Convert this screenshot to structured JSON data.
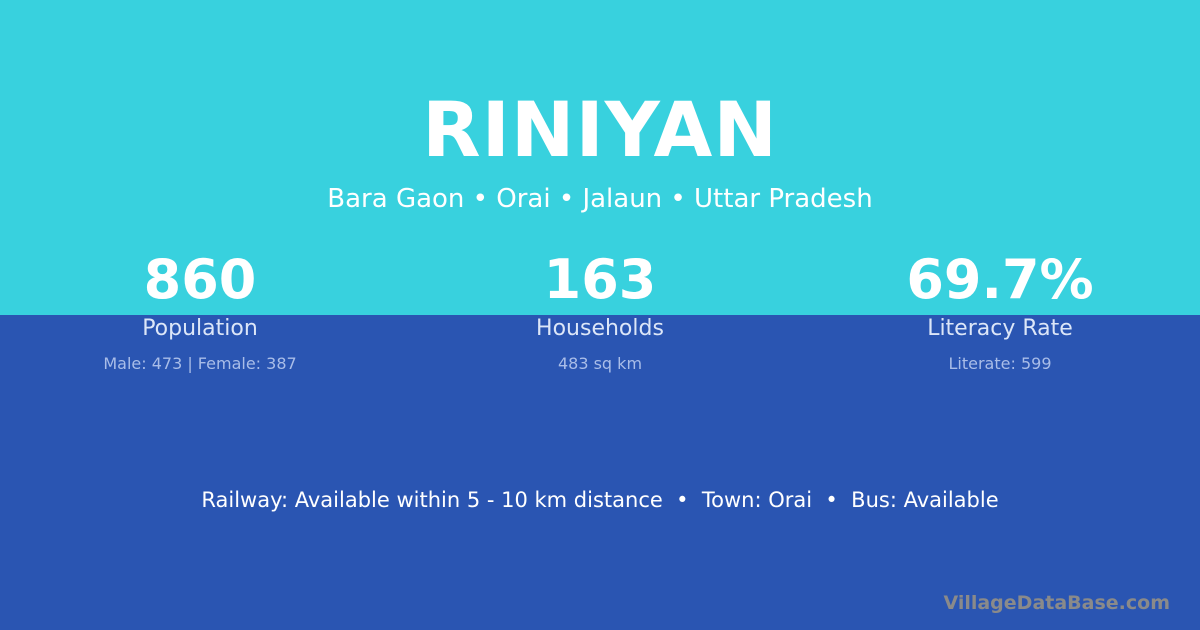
{
  "colors": {
    "top_band": "#38d1de",
    "bottom_band": "#2a55b2",
    "watermark": "#8a8a8a"
  },
  "title": "RINIYAN",
  "subtitle": "Bara Gaon • Orai • Jalaun • Uttar Pradesh",
  "stats": [
    {
      "value": "860",
      "label": "Population",
      "sub": "Male: 473 | Female: 387"
    },
    {
      "value": "163",
      "label": "Households",
      "sub": "483 sq km"
    },
    {
      "value": "69.7%",
      "label": "Literacy Rate",
      "sub": "Literate: 599"
    }
  ],
  "footer": "Railway: Available within 5 - 10 km distance  •  Town: Orai  •  Bus: Available",
  "watermark": "VillageDataBase.com"
}
